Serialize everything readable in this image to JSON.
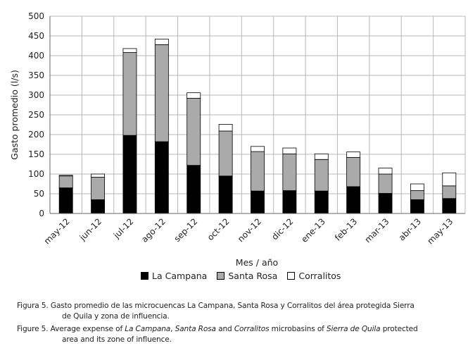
{
  "chart_data": {
    "type": "bar",
    "stacked": true,
    "categories": [
      "may-12",
      "jun-12",
      "jul-12",
      "ago-12",
      "sep-12",
      "oct-12",
      "nov-12",
      "dic-12",
      "ene-13",
      "feb-13",
      "mar-13",
      "abr-13",
      "may-13"
    ],
    "series": [
      {
        "name": "La Campana",
        "color": "#000000",
        "values": [
          65,
          35,
          198,
          182,
          122,
          95,
          57,
          58,
          57,
          68,
          51,
          35,
          38
        ]
      },
      {
        "name": "Santa Rosa",
        "color": "#aaaaaa",
        "values": [
          30,
          57,
          210,
          246,
          170,
          114,
          100,
          93,
          80,
          74,
          49,
          23,
          32
        ]
      },
      {
        "name": "Corralitos",
        "color": "#ffffff",
        "values": [
          2,
          8,
          10,
          14,
          14,
          17,
          13,
          15,
          14,
          14,
          15,
          17,
          33
        ]
      }
    ],
    "xlabel": "Mes / año",
    "ylabel": "Gasto promedio (l/s)",
    "ylim": [
      0,
      500
    ],
    "yticks": [
      0,
      50,
      100,
      150,
      200,
      250,
      300,
      350,
      400,
      450,
      500
    ],
    "grid": true,
    "legend_position": "bottom"
  },
  "caption": {
    "es": {
      "line1": "Figura 5. Gasto promedio de las microcuencas La Campana, Santa Rosa y Corralitos del área protegida Sierra",
      "line2": "de Quila y zona de influencia."
    },
    "en": {
      "p1": "Figure 5. Average expense of ",
      "i1": "La Campana",
      "p2": ", ",
      "i2": "Santa Rosa",
      "p3": " and ",
      "i3": "Corralitos",
      "p4": " microbasins of ",
      "i4": "Sierra de Quila",
      "p5": " protected",
      "line2": "area and its zone of influence."
    }
  }
}
